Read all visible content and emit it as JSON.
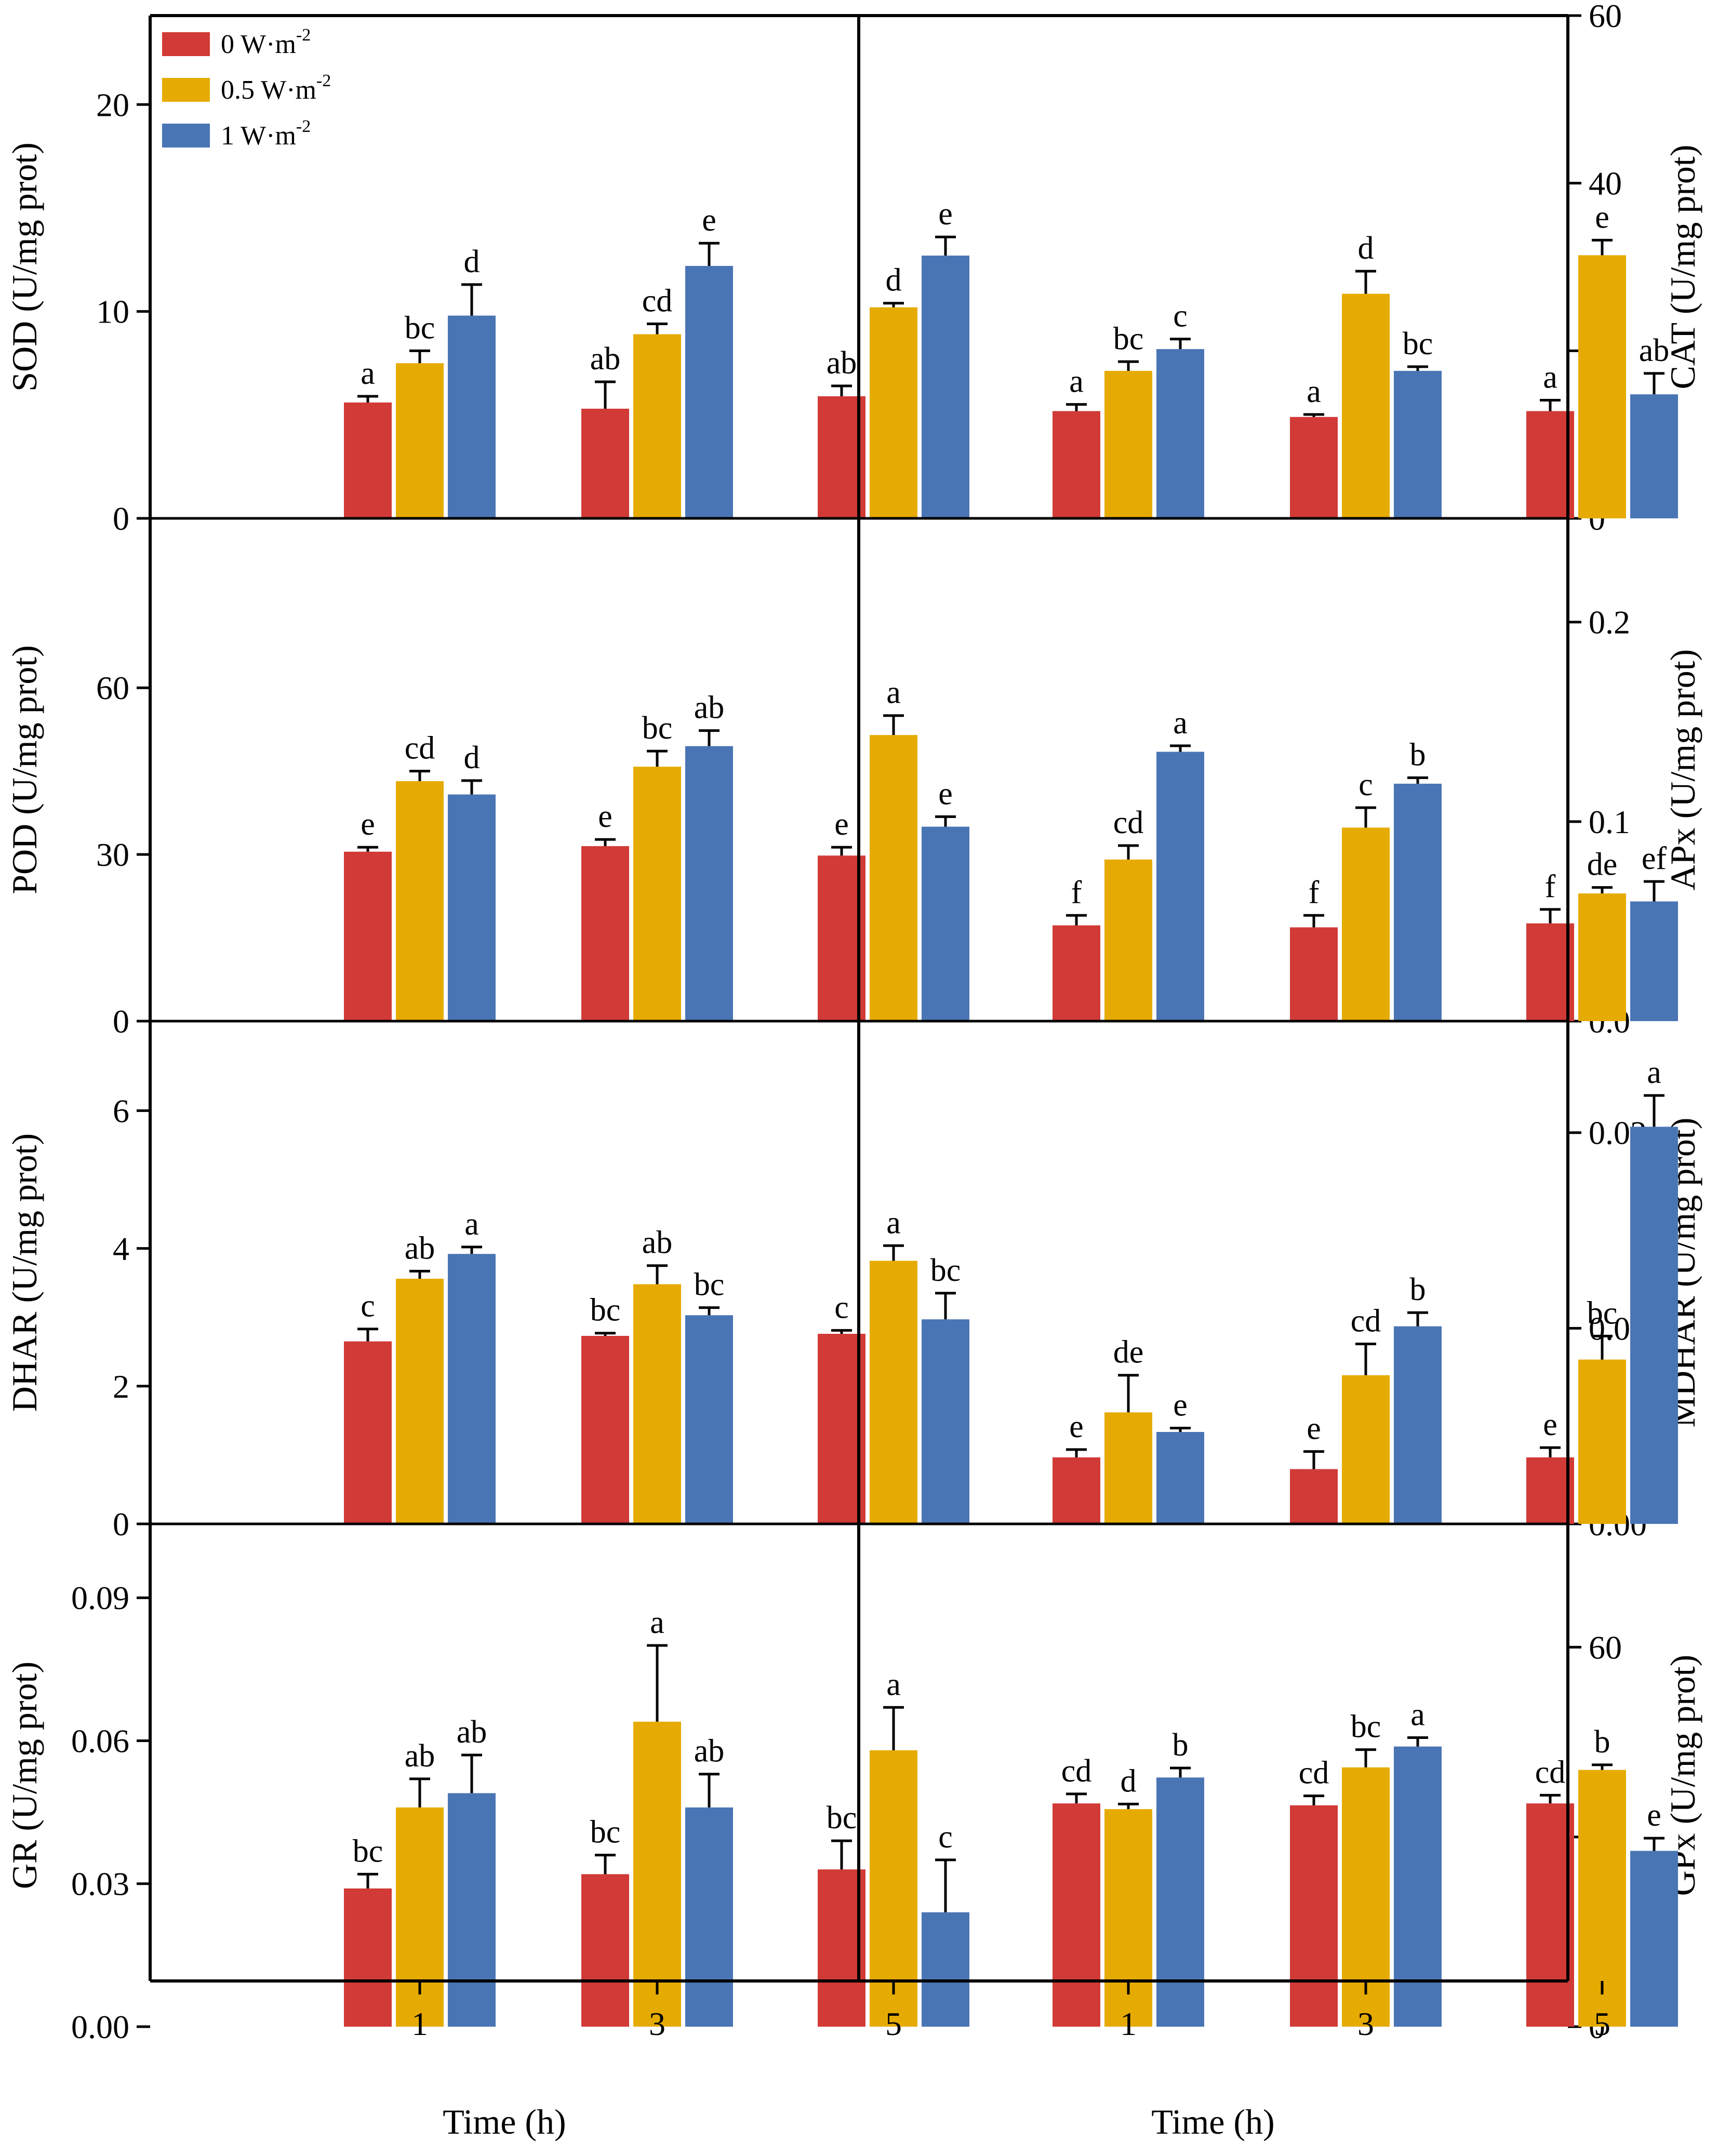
{
  "figure": {
    "xlabel": "Time (h)",
    "legend": [
      {
        "base": "0 W·m",
        "sup": "-2",
        "color": "#D13A36"
      },
      {
        "base": "0.5 W·m",
        "sup": "-2",
        "color": "#E6AB02"
      },
      {
        "base": "1 W·m",
        "sup": "-2",
        "color": "#4A75B5"
      }
    ],
    "legend_position": "top-left"
  },
  "chart_data": [
    {
      "id": "sod",
      "type": "bar",
      "position": "row1-left",
      "axis_side": "left",
      "ylabel": "SOD (U/mg prot)",
      "ylim": [
        0,
        24.3
      ],
      "ticks": [
        0,
        10,
        20
      ],
      "tick_labels": [
        "0",
        "10",
        "20"
      ],
      "categories": [
        "1",
        "3",
        "5"
      ],
      "series": [
        {
          "name": "0 W·m-2",
          "values": [
            5.6,
            5.3,
            5.9
          ],
          "errors": [
            0.3,
            1.3,
            0.5
          ],
          "labels": [
            "a",
            "ab",
            "ab"
          ]
        },
        {
          "name": "0.5 W·m-2",
          "values": [
            7.5,
            8.9,
            10.2
          ],
          "errors": [
            0.6,
            0.5,
            0.2
          ],
          "labels": [
            "bc",
            "cd",
            "d"
          ]
        },
        {
          "name": "1 W·m-2",
          "values": [
            9.8,
            12.2,
            12.7
          ],
          "errors": [
            1.5,
            1.1,
            0.9
          ],
          "labels": [
            "d",
            "e",
            "e"
          ]
        }
      ]
    },
    {
      "id": "cat",
      "type": "bar",
      "position": "row1-right",
      "axis_side": "right",
      "ylabel": "CAT (U/mg prot)",
      "ylim": [
        0,
        60
      ],
      "ticks": [
        0,
        20,
        40,
        60
      ],
      "tick_labels": [
        "0",
        "20",
        "40",
        "60"
      ],
      "categories": [
        "1",
        "3",
        "5"
      ],
      "series": [
        {
          "name": "0 W·m-2",
          "values": [
            12.8,
            12.1,
            12.8
          ],
          "errors": [
            0.8,
            0.3,
            1.3
          ],
          "labels": [
            "a",
            "a",
            "a"
          ]
        },
        {
          "name": "0.5 W·m-2",
          "values": [
            17.6,
            26.8,
            31.4
          ],
          "errors": [
            1.1,
            2.7,
            1.8
          ],
          "labels": [
            "bc",
            "d",
            "e"
          ]
        },
        {
          "name": "1 W·m-2",
          "values": [
            20.2,
            17.6,
            14.8
          ],
          "errors": [
            1.2,
            0.5,
            2.5
          ],
          "labels": [
            "c",
            "bc",
            "ab"
          ]
        }
      ]
    },
    {
      "id": "pod",
      "type": "bar",
      "position": "row2-left",
      "axis_side": "left",
      "ylabel": "POD (U/mg prot)",
      "ylim": [
        0,
        90.5
      ],
      "ticks": [
        0,
        30,
        60
      ],
      "tick_labels": [
        "0",
        "30",
        "60"
      ],
      "categories": [
        "1",
        "3",
        "5"
      ],
      "series": [
        {
          "name": "0 W·m-2",
          "values": [
            30.5,
            31.5,
            29.8
          ],
          "errors": [
            0.8,
            1.2,
            1.5
          ],
          "labels": [
            "e",
            "e",
            "e"
          ]
        },
        {
          "name": "0.5 W·m-2",
          "values": [
            43.2,
            45.8,
            51.5
          ],
          "errors": [
            1.8,
            2.8,
            3.5
          ],
          "labels": [
            "cd",
            "bc",
            "a"
          ]
        },
        {
          "name": "1 W·m-2",
          "values": [
            40.8,
            49.5,
            35.0
          ],
          "errors": [
            2.5,
            2.8,
            1.8
          ],
          "labels": [
            "d",
            "ab",
            "e"
          ]
        }
      ]
    },
    {
      "id": "apx",
      "type": "bar",
      "position": "row2-right",
      "axis_side": "right",
      "ylabel": "APx (U/mg prot)",
      "ylim": [
        0,
        0.252
      ],
      "ticks": [
        0,
        0.1,
        0.2
      ],
      "tick_labels": [
        "0.0",
        "0.1",
        "0.2"
      ],
      "categories": [
        "1",
        "3",
        "5"
      ],
      "series": [
        {
          "name": "0 W·m-2",
          "values": [
            0.048,
            0.047,
            0.049
          ],
          "errors": [
            0.005,
            0.006,
            0.007
          ],
          "labels": [
            "f",
            "f",
            "f"
          ]
        },
        {
          "name": "0.5 W·m-2",
          "values": [
            0.081,
            0.097,
            0.064
          ],
          "errors": [
            0.007,
            0.01,
            0.003
          ],
          "labels": [
            "cd",
            "c",
            "de"
          ]
        },
        {
          "name": "1 W·m-2",
          "values": [
            0.135,
            0.119,
            0.06
          ],
          "errors": [
            0.003,
            0.003,
            0.01
          ],
          "labels": [
            "a",
            "b",
            "ef"
          ]
        }
      ]
    },
    {
      "id": "dhar",
      "type": "bar",
      "position": "row3-left",
      "axis_side": "left",
      "ylabel": "DHAR (U/mg prot)",
      "ylim": [
        0,
        7.3
      ],
      "ticks": [
        0,
        2,
        4,
        6
      ],
      "tick_labels": [
        "0",
        "2",
        "4",
        "6"
      ],
      "categories": [
        "1",
        "3",
        "5"
      ],
      "series": [
        {
          "name": "0 W·m-2",
          "values": [
            2.65,
            2.73,
            2.76
          ],
          "errors": [
            0.18,
            0.04,
            0.05
          ],
          "labels": [
            "c",
            "bc",
            "c"
          ]
        },
        {
          "name": "0.5 W·m-2",
          "values": [
            3.56,
            3.48,
            3.82
          ],
          "errors": [
            0.11,
            0.27,
            0.22
          ],
          "labels": [
            "ab",
            "ab",
            "a"
          ]
        },
        {
          "name": "1 W·m-2",
          "values": [
            3.92,
            3.03,
            2.97
          ],
          "errors": [
            0.1,
            0.11,
            0.38
          ],
          "labels": [
            "a",
            "bc",
            "bc"
          ]
        }
      ]
    },
    {
      "id": "mdhar",
      "type": "bar",
      "position": "row3-right",
      "axis_side": "right",
      "ylabel": "MDHAR (U/mg prot)",
      "ylim": [
        0,
        0.0257
      ],
      "ticks": [
        0,
        0.01,
        0.02
      ],
      "tick_labels": [
        "0.00",
        "0.01",
        "0.02"
      ],
      "categories": [
        "1",
        "3",
        "5"
      ],
      "series": [
        {
          "name": "0 W·m-2",
          "values": [
            0.0034,
            0.0028,
            0.0034
          ],
          "errors": [
            0.0004,
            0.0009,
            0.0005
          ],
          "labels": [
            "e",
            "e",
            "e"
          ]
        },
        {
          "name": "0.5 W·m-2",
          "values": [
            0.0057,
            0.0076,
            0.0084
          ],
          "errors": [
            0.0019,
            0.0016,
            0.0012
          ],
          "labels": [
            "de",
            "cd",
            "bc"
          ]
        },
        {
          "name": "1 W·m-2",
          "values": [
            0.0047,
            0.0101,
            0.0203
          ],
          "errors": [
            0.0002,
            0.0007,
            0.0016
          ],
          "labels": [
            "e",
            "b",
            "a"
          ]
        }
      ]
    },
    {
      "id": "gr",
      "type": "bar",
      "position": "row4-left",
      "axis_side": "left",
      "ylabel": "GR (U/mg prot)",
      "ylim": [
        0,
        0.1055
      ],
      "ticks": [
        0,
        0.03,
        0.06,
        0.09
      ],
      "tick_labels": [
        "0.00",
        "0.03",
        "0.06",
        "0.09"
      ],
      "categories": [
        "1",
        "3",
        "5"
      ],
      "series": [
        {
          "name": "0 W·m-2",
          "values": [
            0.029,
            0.032,
            0.033
          ],
          "errors": [
            0.003,
            0.004,
            0.006
          ],
          "labels": [
            "bc",
            "bc",
            "bc"
          ]
        },
        {
          "name": "0.5 W·m-2",
          "values": [
            0.046,
            0.064,
            0.058
          ],
          "errors": [
            0.006,
            0.016,
            0.009
          ],
          "labels": [
            "ab",
            "a",
            "a"
          ]
        },
        {
          "name": "1 W·m-2",
          "values": [
            0.049,
            0.046,
            0.024
          ],
          "errors": [
            0.008,
            0.007,
            0.011
          ],
          "labels": [
            "ab",
            "ab",
            "c"
          ]
        }
      ]
    },
    {
      "id": "gpx",
      "type": "bar",
      "position": "row4-right",
      "axis_side": "right",
      "ylabel": "GPx (U/mg prot)",
      "ylim": [
        0,
        79.5
      ],
      "ticks": [
        0,
        30,
        60
      ],
      "tick_labels": [
        "0",
        "30",
        "60"
      ],
      "categories": [
        "1",
        "3",
        "5"
      ],
      "series": [
        {
          "name": "0 W·m-2",
          "values": [
            35.3,
            35.0,
            35.3
          ],
          "errors": [
            1.5,
            1.5,
            1.3
          ],
          "labels": [
            "cd",
            "cd",
            "cd"
          ]
        },
        {
          "name": "0.5 W·m-2",
          "values": [
            34.4,
            41.0,
            40.6
          ],
          "errors": [
            0.8,
            2.8,
            0.8
          ],
          "labels": [
            "d",
            "bc",
            "b"
          ]
        },
        {
          "name": "1 W·m-2",
          "values": [
            39.4,
            44.3,
            27.8
          ],
          "errors": [
            1.5,
            1.4,
            2.0
          ],
          "labels": [
            "b",
            "a",
            "e"
          ]
        }
      ]
    }
  ]
}
